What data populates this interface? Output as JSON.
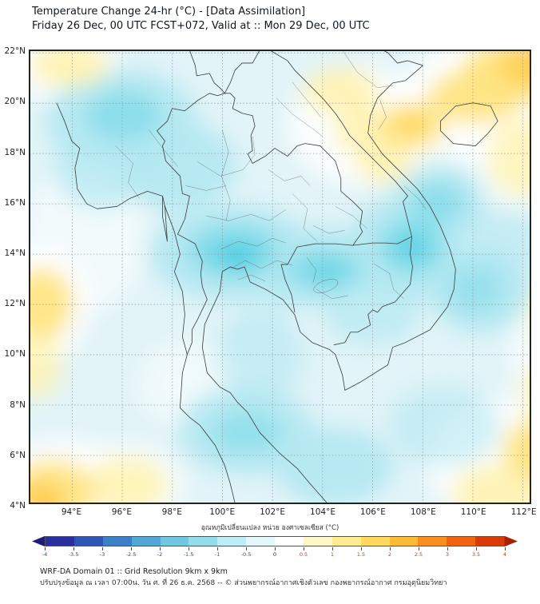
{
  "header": {
    "title": "Temperature Change 24-hr (°C) - [Data Assimilation]",
    "subtitle": "Friday 26 Dec, 00 UTC FCST+072, Valid at :: Mon 29 Dec, 00 UTC"
  },
  "map": {
    "lat_ticks": [
      "22°N",
      "20°N",
      "18°N",
      "16°N",
      "14°N",
      "12°N",
      "10°N",
      "8°N",
      "6°N",
      "4°N"
    ],
    "lon_ticks": [
      "94°E",
      "96°E",
      "98°E",
      "100°E",
      "102°E",
      "104°E",
      "106°E",
      "108°E",
      "110°E",
      "112°E"
    ]
  },
  "colorbar": {
    "title": "อุณหภูมิเปลี่ยนแปลง หน่วย องศาเซลเซียส (°C)",
    "tick_labels": [
      "-4",
      "-3.5",
      "-3",
      "-2.5",
      "-2",
      "-1.5",
      "-1",
      "-0.5",
      "0",
      "0.5",
      "1",
      "1.5",
      "2",
      "2.5",
      "3",
      "3.5",
      "4"
    ],
    "segments": [
      "#2a2f9e",
      "#2f55b5",
      "#3b7fc4",
      "#52a8d4",
      "#6ec6e0",
      "#93dcec",
      "#bceef5",
      "#e2f8fb",
      "#ffffff",
      "#fff7c9",
      "#ffec92",
      "#ffd95e",
      "#ffbb38",
      "#f98f1e",
      "#ef6410",
      "#d83b06"
    ],
    "arrow_left": "#1c1c7a",
    "arrow_right": "#a81e04"
  },
  "footer": {
    "line1": "WRF-DA Domain 01 :: Grid Resolution 9km x 9km",
    "line2": "ปรับปรุงข้อมูล ณ เวลา 07:00น. วัน ศ. ที่ 26 ธ.ค. 2568 -- © ส่วนพยากรณ์อากาศเชิงตัวเลข กองพยากรณ์อากาศ กรมอุตุนิยมวิทยา"
  },
  "chart_data": {
    "type": "heatmap",
    "title": "Temperature Change 24-hr (°C) - [Data Assimilation]",
    "units": "°C",
    "value_range": [
      -4,
      4
    ],
    "lon_range_deg_e": [
      92.3,
      112.3
    ],
    "lat_range_deg_n": [
      4,
      22.1
    ],
    "legend_position": "bottom",
    "grid": "dashed 2-degree graticule",
    "notable_features": [
      {
        "area": "Central Thailand around 100.5E 14N",
        "value_c": -1.5
      },
      {
        "area": "East-central band 103-105E 13-14N",
        "value_c": -1.0
      },
      {
        "area": "Southern Laos / Cambodia-Vietnam border 107.5E 14.5N",
        "value_c": -1.0
      },
      {
        "area": "Northwest region 95-97E 19-20N",
        "value_c": -0.8
      },
      {
        "area": "Top-right corner 111-112E 21-22N",
        "value_c": 1.5
      },
      {
        "area": "Northern Vietnam band 104-107E 18-21N",
        "value_c": 0.8
      },
      {
        "area": "Left edge 92.5E 12N",
        "value_c": 0.8
      },
      {
        "area": "Bottom-left corner 92.5E 4.5N",
        "value_c": 1.8
      },
      {
        "area": "Bottom-right corner 111E 4-6N",
        "value_c": 0.8
      },
      {
        "area": "Background over most of domain",
        "value_c": -0.5
      }
    ]
  }
}
